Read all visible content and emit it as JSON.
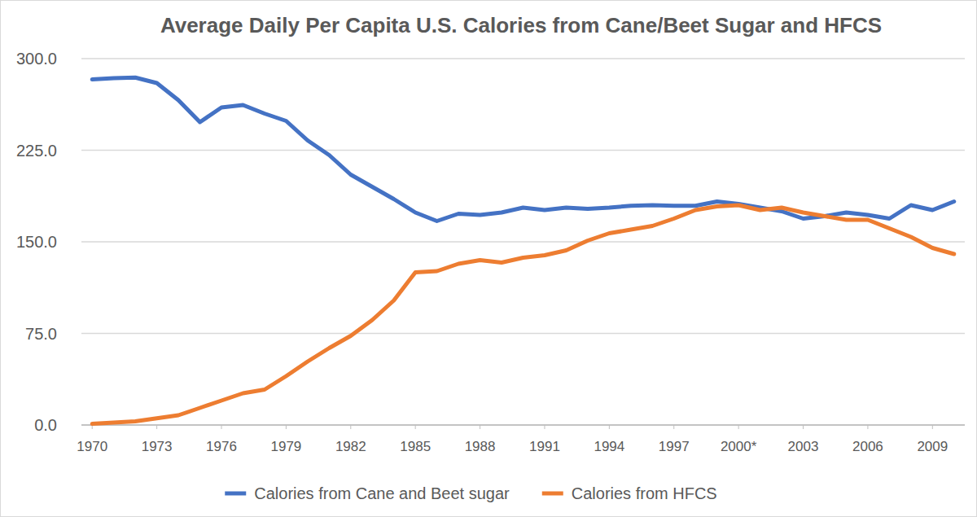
{
  "chart_data": {
    "type": "line",
    "title": "Average Daily Per Capita U.S. Calories from Cane/Beet Sugar and HFCS",
    "x": [
      1970,
      1971,
      1972,
      1973,
      1974,
      1975,
      1976,
      1977,
      1978,
      1979,
      1980,
      1981,
      1982,
      1983,
      1984,
      1985,
      1986,
      1987,
      1988,
      1989,
      1990,
      1991,
      1992,
      1993,
      1994,
      1995,
      1996,
      1997,
      1998,
      1999,
      2000,
      2001,
      2002,
      2003,
      2004,
      2005,
      2006,
      2007,
      2008,
      2009,
      2010
    ],
    "series": [
      {
        "name": "Calories from Cane and Beet sugar",
        "color": "#4472c4",
        "values": [
          283,
          284,
          284.5,
          280,
          266,
          248,
          260,
          262,
          255,
          249,
          233,
          221,
          205,
          195,
          185,
          174,
          167,
          173,
          172,
          174,
          178,
          176,
          178,
          177,
          178,
          179.5,
          180,
          179.5,
          179.5,
          183,
          181,
          178,
          175,
          169,
          171,
          174,
          172,
          169,
          180,
          176,
          183
        ]
      },
      {
        "name": "Calories from HFCS",
        "color": "#ed7d31",
        "values": [
          1,
          2,
          3,
          5.5,
          8,
          14,
          20,
          26,
          29,
          40,
          52,
          63,
          73,
          86,
          102,
          125,
          126,
          132,
          135,
          133,
          137,
          139,
          143,
          151,
          157,
          160,
          163,
          169,
          176,
          179,
          180,
          176,
          178,
          174,
          171,
          168,
          168,
          161,
          154,
          145,
          140
        ]
      }
    ],
    "xlim": [
      1969.5,
      2010.5
    ],
    "xticks": [
      1970,
      1973,
      1976,
      1979,
      1982,
      1985,
      1988,
      1991,
      1994,
      1997,
      {
        "value": 2000,
        "label": "2000*"
      },
      2003,
      2006,
      2009
    ],
    "ylim": [
      0,
      300
    ],
    "yticks": [
      {
        "value": 0,
        "label": "0.0"
      },
      {
        "value": 75,
        "label": "75.0"
      },
      {
        "value": 150,
        "label": "150.0"
      },
      {
        "value": 225,
        "label": "225.0"
      },
      {
        "value": 300,
        "label": "300.0"
      }
    ],
    "grid": true,
    "legend": "bottom"
  }
}
